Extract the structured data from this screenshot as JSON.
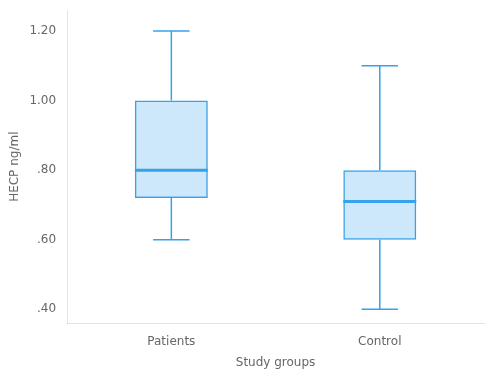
{
  "chart_data": {
    "type": "box",
    "categories": [
      "Patients",
      "Control"
    ],
    "whisker_low": [
      0.6,
      0.4
    ],
    "q1": [
      0.72,
      0.6
    ],
    "median": [
      0.8,
      0.71
    ],
    "q3": [
      1.0,
      0.8
    ],
    "whisker_high": [
      1.2,
      1.1
    ],
    "xlabel": "Study groups",
    "ylabel": "HECP ng/ml",
    "ylim": [
      0.36,
      1.26
    ],
    "yticks": [
      {
        "value": 0.4,
        "label": ".40"
      },
      {
        "value": 0.6,
        "label": ".60"
      },
      {
        "value": 0.8,
        "label": ".80"
      },
      {
        "value": 1.0,
        "label": "1.00"
      },
      {
        "value": 1.2,
        "label": "1.20"
      }
    ],
    "color": "#36a2eb",
    "grid": false
  }
}
